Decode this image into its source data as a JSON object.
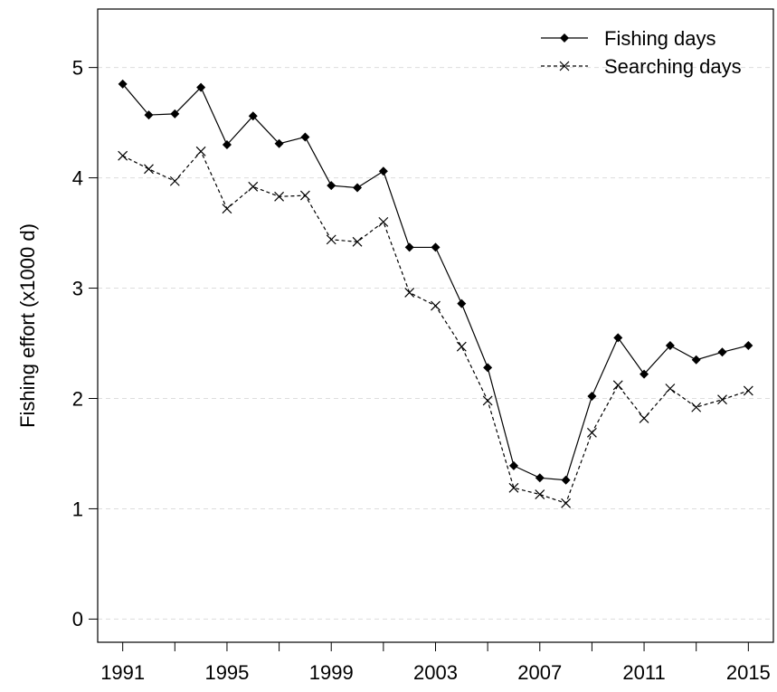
{
  "chart_data": {
    "type": "line",
    "y_label": "Fishing effort (x1000 d)",
    "x": [
      1991,
      1992,
      1993,
      1994,
      1995,
      1996,
      1997,
      1998,
      1999,
      2000,
      2001,
      2002,
      2003,
      2004,
      2005,
      2006,
      2007,
      2008,
      2009,
      2010,
      2011,
      2012,
      2013,
      2014,
      2015
    ],
    "series": [
      {
        "name": "Fishing days",
        "color": "#000000",
        "marker": "diamond",
        "linestyle": "solid",
        "values": [
          4.85,
          4.57,
          4.58,
          4.82,
          4.3,
          4.56,
          4.31,
          4.37,
          3.93,
          3.91,
          4.06,
          3.37,
          3.37,
          2.86,
          2.28,
          1.39,
          1.28,
          1.26,
          2.02,
          2.55,
          2.22,
          2.48,
          2.35,
          2.42,
          2.48
        ]
      },
      {
        "name": "Searching days",
        "color": "#000000",
        "marker": "cross",
        "linestyle": "dashed",
        "values": [
          4.2,
          4.08,
          3.97,
          4.24,
          3.72,
          3.92,
          3.83,
          3.84,
          3.44,
          3.42,
          3.6,
          2.96,
          2.84,
          2.47,
          1.98,
          1.19,
          1.13,
          1.05,
          1.69,
          2.12,
          1.82,
          2.09,
          1.92,
          1.99,
          2.07
        ]
      }
    ],
    "xlim": [
      1990.04,
      2015.96
    ],
    "xticks": [
      1991,
      1995,
      1999,
      2003,
      2007,
      2011,
      2015
    ],
    "minor_xticks": [
      1993,
      1997,
      2001,
      2005,
      2009,
      2013
    ],
    "ylim": [
      -0.21,
      5.53
    ],
    "yticks": [
      0,
      1,
      2,
      3,
      4,
      5
    ],
    "grid": true,
    "legend": "top-right"
  }
}
